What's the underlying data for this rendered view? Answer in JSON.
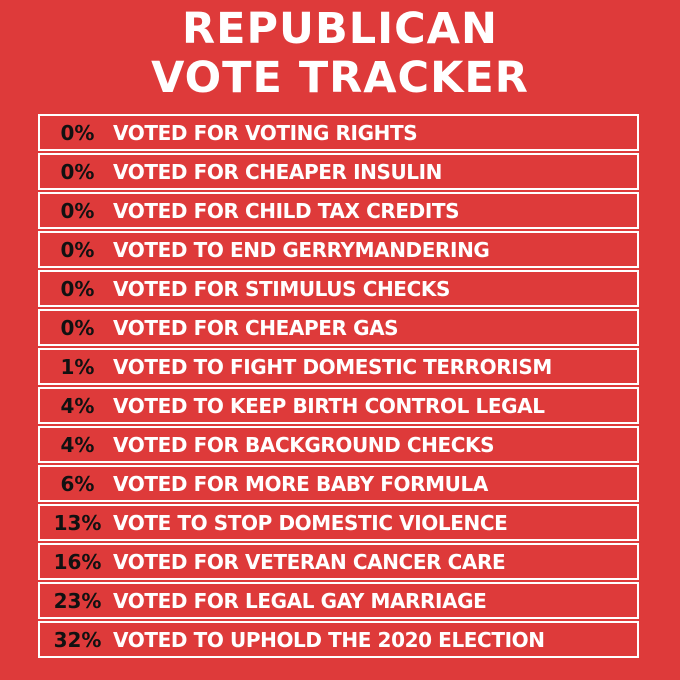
{
  "title_line1": "REPUBLICAN",
  "title_line2": "VOTE TRACKER",
  "rows": [
    {
      "percent": "0%",
      "text": "VOTED FOR VOTING RIGHTS"
    },
    {
      "percent": "0%",
      "text": "VOTED FOR CHEAPER INSULIN"
    },
    {
      "percent": "0%",
      "text": "VOTED FOR CHILD TAX CREDITS"
    },
    {
      "percent": "0%",
      "text": "VOTED TO END GERRYMANDERING"
    },
    {
      "percent": "0%",
      "text": "VOTED FOR STIMULUS CHECKS"
    },
    {
      "percent": "0%",
      "text": "VOTED FOR CHEAPER GAS"
    },
    {
      "percent": "1%",
      "text": "VOTED TO FIGHT DOMESTIC TERRORISM"
    },
    {
      "percent": "4%",
      "text": "VOTED TO KEEP BIRTH CONTROL LEGAL"
    },
    {
      "percent": "4%",
      "text": "VOTED FOR BACKGROUND CHECKS"
    },
    {
      "percent": "6%",
      "text": "VOTED FOR MORE BABY FORMULA"
    },
    {
      "percent": "13%",
      "text": "VOTE TO STOP DOMESTIC VIOLENCE"
    },
    {
      "percent": "16%",
      "text": "VOTED FOR VETERAN CANCER CARE"
    },
    {
      "percent": "23%",
      "text": "VOTED FOR LEGAL GAY MARRIAGE"
    },
    {
      "percent": "32%",
      "text": "VOTED TO UPHOLD THE 2020 ELECTION"
    }
  ],
  "colors": {
    "background": "#de3a3a",
    "title_text": "#ffffff",
    "percent_text": "#111111",
    "row_text": "#ffffff",
    "row_border": "#ffffff"
  }
}
